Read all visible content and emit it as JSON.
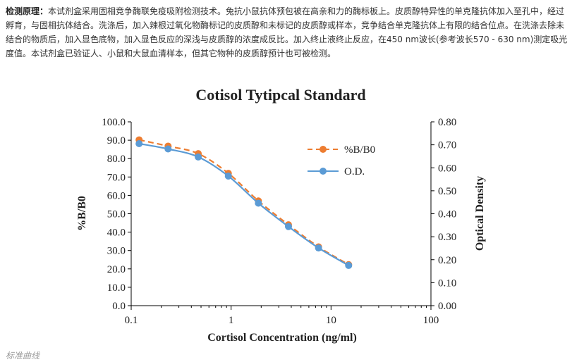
{
  "article": {
    "heading": "检测原理：",
    "body": "本试剂盒采用固相竞争酶联免疫吸附检测技术。兔抗小鼠抗体预包被在高亲和力的酶标板上。皮质醇特异性的单克隆抗体加入至孔中，经过孵育，与固相抗体结合。洗涤后，加入辣根过氧化物酶标记的皮质醇和未标记的皮质醇或样本，竞争结合单克隆抗体上有限的结合位点。在洗涤去除未结合的物质后，加入显色底物，加入显色反应的深浅与皮质醇的浓度成反比。加入终止液终止反应，在450 nm波长(参考波长570 - 630 nm)测定吸光度值。本试剂盒已验证人、小鼠和大鼠血清样本，但其它物种的皮质醇预计也可被检测。",
    "caption": "标准曲线"
  },
  "colors": {
    "series1": "#ED7D31",
    "series2": "#5B9BD5",
    "axis": "#000000"
  },
  "chart_data": {
    "type": "line",
    "title": "Cotisol Tytipcal Standard",
    "xlabel": "Cortisol Concentration (ng/ml)",
    "ylabel": "%B/B0",
    "y2label": "Optical Density",
    "xscale": "log",
    "xlim": [
      0.1,
      100
    ],
    "xticks": [
      "0.1",
      "1",
      "10",
      "100"
    ],
    "ylim": [
      0,
      100
    ],
    "yticks": [
      "0.0",
      "10.0",
      "20.0",
      "30.0",
      "40.0",
      "50.0",
      "60.0",
      "70.0",
      "80.0",
      "90.0",
      "100.0"
    ],
    "y2lim": [
      0,
      0.8
    ],
    "y2ticks": [
      "0.00",
      "0.10",
      "0.20",
      "0.30",
      "0.40",
      "0.50",
      "0.60",
      "0.70",
      "0.80"
    ],
    "legend_position": "right",
    "x": [
      0.12,
      0.234,
      0.469,
      0.938,
      1.875,
      3.75,
      7.5,
      15
    ],
    "series": [
      {
        "name": "%B/B0",
        "axis": "left",
        "style": "dashed",
        "values": [
          90.2,
          86.8,
          82.7,
          72.0,
          57.0,
          44.0,
          32.0,
          22.3
        ]
      },
      {
        "name": "O.D.",
        "axis": "right",
        "style": "solid",
        "values": [
          0.705,
          0.682,
          0.647,
          0.564,
          0.446,
          0.344,
          0.251,
          0.175
        ]
      }
    ]
  }
}
